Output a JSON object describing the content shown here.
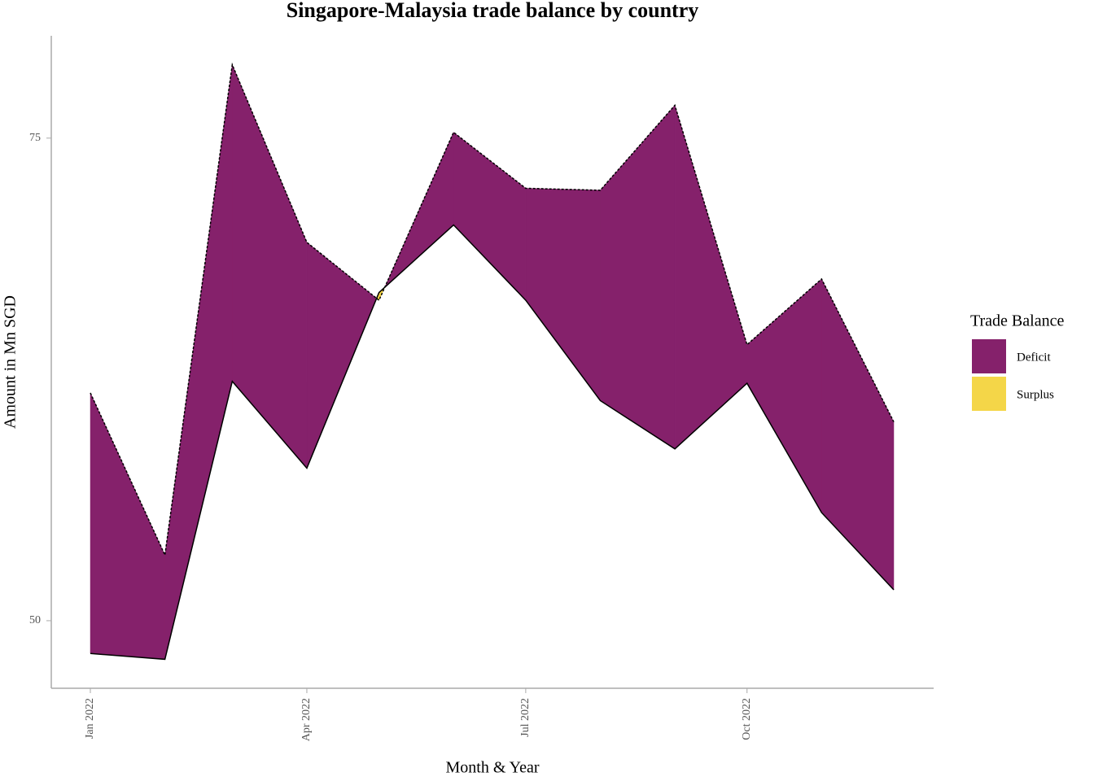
{
  "chart_data": {
    "type": "ribbon",
    "title": "Singapore-Malaysia trade balance by country",
    "x_label": "Month & Year",
    "y_label": "Amount in Mn SGD",
    "x": [
      "2022-01",
      "2022-02",
      "2022-03",
      "2022-04",
      "2022-05",
      "2022-06",
      "2022-07",
      "2022-08",
      "2022-09",
      "2022-10",
      "2022-11",
      "2022-12"
    ],
    "series": [
      {
        "values": [
          61.8,
          53.4,
          78.8,
          69.6,
          66.6,
          75.3,
          72.4,
          72.3,
          76.7,
          64.3,
          67.7,
          60.3
        ],
        "color": "#000000",
        "dash": true
      },
      {
        "values": [
          48.3,
          48.0,
          62.4,
          57.9,
          67.0,
          70.5,
          66.6,
          61.4,
          58.9,
          62.3,
          55.6,
          51.6
        ],
        "color": "#000000",
        "dash": false
      }
    ],
    "xticks": [
      {
        "value": "2022-01",
        "label": "Jan 2022"
      },
      {
        "value": "2022-04",
        "label": "Apr 2022"
      },
      {
        "value": "2022-07",
        "label": "Jul 2022"
      },
      {
        "value": "2022-10",
        "label": "Oct 2022"
      }
    ],
    "ylim": [
      46.5,
      80.3
    ],
    "yticks": [
      50,
      75
    ],
    "grid": false,
    "legend": {
      "title": "Trade Balance",
      "position": "right",
      "items": [
        {
          "name": "Deficit",
          "color": "#85216b"
        },
        {
          "name": "Surplus",
          "color": "#f4d648"
        }
      ]
    }
  }
}
